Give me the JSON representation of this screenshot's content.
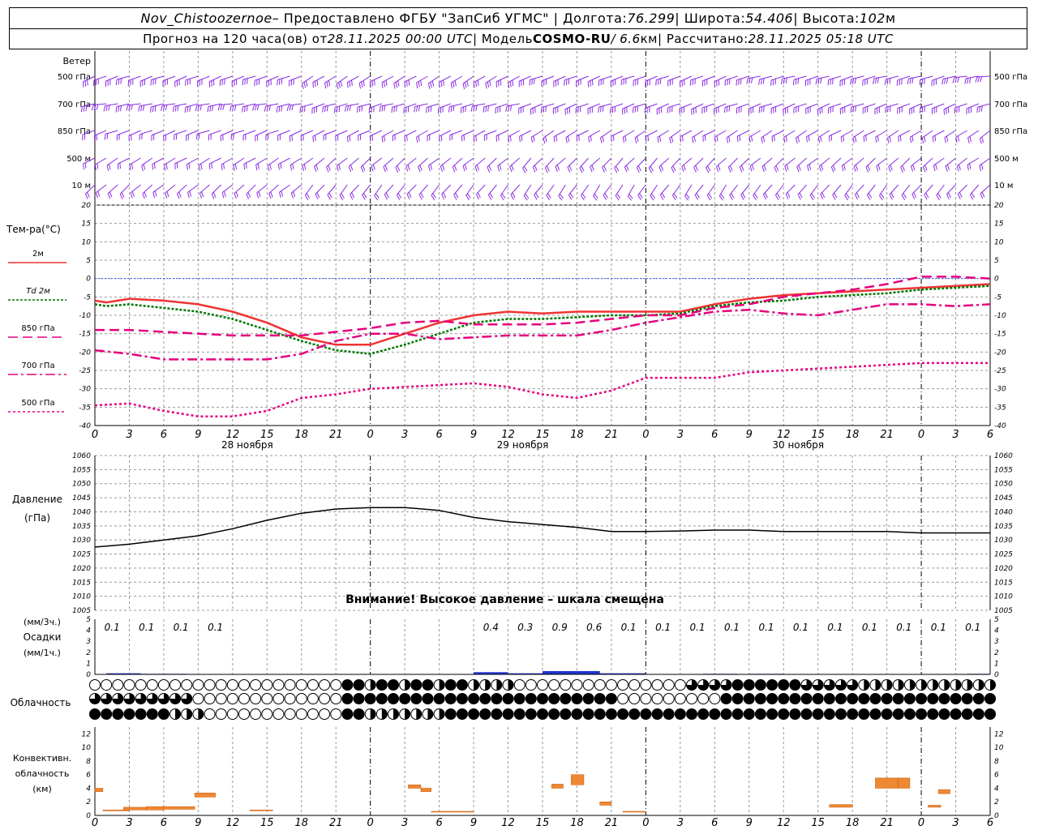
{
  "header": {
    "station": "Nov_Chistoozernoe",
    "provider": " – Предоставлено ФГБУ \"ЗапСиб УГМС\" | Долгота: ",
    "lon": "76.299",
    "lat_label": " | Широта: ",
    "lat": "54.406",
    "alt_label": " | Высота: ",
    "alt": "102",
    "alt_unit": "м",
    "forecast_prefix": "Прогноз на 120 часа(ов) от ",
    "forecast_from": "28.11.2025 00:00 UTC",
    "model_prefix": " | Модель ",
    "model": "COSMO-RU",
    "resolution": " / 6.6",
    "res_unit": "км",
    "calc_prefix": " | Рассчитано: ",
    "calc_time": "28.11.2025 05:18 UTC"
  },
  "labels": {
    "wind": "Ветер",
    "wind_levels": [
      "500 гПа",
      "700 гПа",
      "850 гПа",
      "500 м",
      "10  м"
    ],
    "temp_title": "Тем-ра(°С)",
    "temp_legend": [
      "2м",
      "Td  2м",
      "850 гПа",
      "700 гПа",
      "500 гПа"
    ],
    "pressure_title": "Давление",
    "pressure_unit": "(гПа)",
    "warning": "Внимание! Высокое давление – шкала смещена",
    "precip_top": "(мм/3ч.)",
    "precip_mid": "Осадки",
    "precip_bot": "(мм/1ч.)",
    "cloud": "Облачность",
    "conv1": "Конвективн.",
    "conv2": "облачность",
    "conv3": "(км)"
  },
  "colors": {
    "wind": "#8a2be2",
    "t2m": "#ee3333",
    "td2m": "#007700",
    "t850": "#e6007e",
    "t700": "#e6007e",
    "t500": "#e6007e",
    "pressure": "#000000",
    "precip": "#2233cc",
    "conv": "#ee8833",
    "grid": "#999999"
  },
  "chart_data": [
    {
      "type": "line",
      "name": "temperature",
      "x_ticks": [
        "0",
        "3",
        "6",
        "9",
        "12",
        "15",
        "18",
        "21",
        "0",
        "3",
        "6",
        "9",
        "12",
        "15",
        "18",
        "21",
        "0",
        "3",
        "6",
        "9",
        "12",
        "15",
        "18",
        "21",
        "0",
        "3",
        "6"
      ],
      "days": [
        "28 ноября",
        "29 ноября",
        "30 ноября"
      ],
      "ylim": [
        -40,
        20
      ],
      "yticks": [
        20,
        15,
        10,
        5,
        0,
        -5,
        -10,
        -15,
        -20,
        -25,
        -30,
        -35,
        -40
      ],
      "series": [
        {
          "name": "2м",
          "x": [
            0,
            1,
            3,
            6,
            9,
            12,
            15,
            18,
            21,
            24,
            27,
            30,
            33,
            36,
            39,
            42,
            45,
            48,
            51,
            54,
            57,
            60,
            63,
            66,
            69,
            72,
            75,
            78
          ],
          "values": [
            -6,
            -6.5,
            -5.5,
            -6,
            -7,
            -9,
            -12,
            -16,
            -18,
            -18,
            -15,
            -12,
            -10,
            -9,
            -9.5,
            -9,
            -9,
            -9,
            -9,
            -7,
            -5.5,
            -4.5,
            -4,
            -3.5,
            -3,
            -2.5,
            -2,
            -1.5
          ]
        },
        {
          "name": "Td  2м",
          "x": [
            0,
            1,
            3,
            6,
            9,
            12,
            15,
            18,
            21,
            24,
            27,
            30,
            33,
            36,
            39,
            42,
            45,
            48,
            51,
            54,
            57,
            60,
            63,
            66,
            69,
            72,
            75,
            78
          ],
          "values": [
            -7,
            -7.5,
            -7,
            -8,
            -9,
            -11,
            -14,
            -17,
            -19.5,
            -20.5,
            -18,
            -15,
            -12,
            -11,
            -11,
            -10.5,
            -10,
            -10,
            -9.5,
            -7.5,
            -6.5,
            -6,
            -5,
            -4.5,
            -4,
            -3,
            -2.5,
            -2
          ]
        },
        {
          "name": "850 гПа",
          "x": [
            0,
            3,
            6,
            9,
            12,
            15,
            18,
            21,
            24,
            27,
            30,
            33,
            36,
            39,
            42,
            45,
            48,
            51,
            54,
            57,
            60,
            63,
            66,
            69,
            72,
            75,
            78
          ],
          "values": [
            -14,
            -14,
            -14.5,
            -15,
            -15.5,
            -15.5,
            -15.5,
            -14.5,
            -13.5,
            -12,
            -11.5,
            -12.5,
            -12.5,
            -12.5,
            -12,
            -11,
            -10,
            -10,
            -8,
            -7,
            -5,
            -4,
            -3,
            -1.5,
            0.5,
            0.5,
            0
          ]
        },
        {
          "name": "700 гПа",
          "x": [
            0,
            3,
            6,
            9,
            12,
            15,
            18,
            21,
            24,
            27,
            30,
            33,
            36,
            39,
            42,
            45,
            48,
            51,
            54,
            57,
            60,
            63,
            66,
            69,
            72,
            75,
            78
          ],
          "values": [
            -19.5,
            -20.5,
            -22,
            -22,
            -22,
            -22,
            -20.5,
            -17,
            -15,
            -15,
            -16.5,
            -16,
            -15.5,
            -15.5,
            -15.5,
            -14,
            -12,
            -10.5,
            -9,
            -8.5,
            -9.5,
            -10,
            -8.5,
            -7,
            -7,
            -7.5,
            -7
          ]
        },
        {
          "name": "500 гПа",
          "x": [
            0,
            3,
            6,
            9,
            12,
            15,
            18,
            21,
            24,
            27,
            30,
            33,
            36,
            39,
            42,
            45,
            48,
            51,
            54,
            57,
            60,
            63,
            66,
            69,
            72,
            75,
            78
          ],
          "values": [
            -34.5,
            -34,
            -36,
            -37.5,
            -37.5,
            -36,
            -32.5,
            -31.5,
            -30,
            -29.5,
            -29,
            -28.5,
            -29.5,
            -31.5,
            -32.5,
            -30.5,
            -27,
            -27,
            -27,
            -25.5,
            -25,
            -24.5,
            -24,
            -23.5,
            -23,
            -23,
            -23
          ]
        }
      ]
    },
    {
      "type": "line",
      "name": "pressure",
      "ylim": [
        1005,
        1060
      ],
      "yticks": [
        1060,
        1055,
        1050,
        1045,
        1040,
        1035,
        1030,
        1025,
        1020,
        1015,
        1010,
        1005
      ],
      "x": [
        0,
        3,
        6,
        9,
        12,
        15,
        18,
        21,
        24,
        27,
        30,
        33,
        36,
        39,
        42,
        45,
        48,
        51,
        54,
        57,
        60,
        63,
        66,
        69,
        72,
        75,
        78
      ],
      "values": [
        1027.5,
        1028.5,
        1030,
        1031.5,
        1034,
        1037,
        1039.5,
        1041,
        1041.5,
        1041.5,
        1040.5,
        1038,
        1036.5,
        1035.5,
        1034.5,
        1033,
        1033,
        1033.2,
        1033.5,
        1033.5,
        1033,
        1033,
        1033,
        1033,
        1032.5,
        1032.5,
        1032.5
      ]
    },
    {
      "type": "bar",
      "name": "precipitation",
      "ylim": [
        0,
        5
      ],
      "labels_3h": [
        {
          "x": 1.5,
          "v": "0.1"
        },
        {
          "x": 4.5,
          "v": "0.1"
        },
        {
          "x": 7.5,
          "v": "0.1"
        },
        {
          "x": 10.5,
          "v": "0.1"
        },
        {
          "x": 34.5,
          "v": "0.4"
        },
        {
          "x": 37.5,
          "v": "0.3"
        },
        {
          "x": 40.5,
          "v": "0.9"
        },
        {
          "x": 43.5,
          "v": "0.6"
        },
        {
          "x": 46.5,
          "v": "0.1"
        },
        {
          "x": 49.5,
          "v": "0.1"
        },
        {
          "x": 52.5,
          "v": "0.1"
        },
        {
          "x": 55.5,
          "v": "0.1"
        },
        {
          "x": 58.5,
          "v": "0.1"
        },
        {
          "x": 61.5,
          "v": "0.1"
        },
        {
          "x": 64.5,
          "v": "0.1"
        },
        {
          "x": 67.5,
          "v": "0.1"
        },
        {
          "x": 70.5,
          "v": "0.1"
        },
        {
          "x": 73.5,
          "v": "0.1"
        },
        {
          "x": 76.5,
          "v": "0.1"
        }
      ],
      "hourly": [
        [
          1,
          4,
          0.1
        ],
        [
          4,
          8,
          0.05
        ],
        [
          33,
          36,
          0.2
        ],
        [
          36,
          39,
          0.1
        ],
        [
          39,
          44,
          0.3
        ],
        [
          44,
          48,
          0.1
        ],
        [
          53,
          56,
          0.05
        ],
        [
          57,
          60,
          0.05
        ],
        [
          76,
          78,
          0.05
        ]
      ]
    },
    {
      "type": "bar",
      "name": "convective_cloud",
      "ylim": [
        0,
        13
      ],
      "yticks": [
        12,
        10,
        8,
        6,
        4,
        2,
        0
      ],
      "cells": [
        [
          0,
          0.7,
          3.5,
          4
        ],
        [
          0.7,
          3,
          0.7,
          0.8
        ],
        [
          2.5,
          4.5,
          0.8,
          1.2
        ],
        [
          4.5,
          6,
          0.8,
          1.3
        ],
        [
          6,
          8.7,
          0.9,
          1.3
        ],
        [
          8.7,
          10.5,
          2.7,
          3.3
        ],
        [
          13.5,
          15.5,
          0.7,
          0.8
        ],
        [
          27.3,
          28.4,
          4,
          4.5
        ],
        [
          28.4,
          29.3,
          3.5,
          4
        ],
        [
          29.3,
          33,
          0.5,
          0.6
        ],
        [
          39.8,
          40.8,
          4,
          4.6
        ],
        [
          41.5,
          42.6,
          4.5,
          6
        ],
        [
          44,
          45,
          1.5,
          2
        ],
        [
          46,
          48,
          0.5,
          0.6
        ],
        [
          64,
          66,
          1.2,
          1.6
        ],
        [
          68,
          70,
          4,
          5.5
        ],
        [
          70,
          71,
          4,
          5.5
        ],
        [
          72.6,
          73.7,
          1.2,
          1.5
        ],
        [
          73.5,
          74.5,
          3.2,
          3.8
        ]
      ]
    }
  ]
}
